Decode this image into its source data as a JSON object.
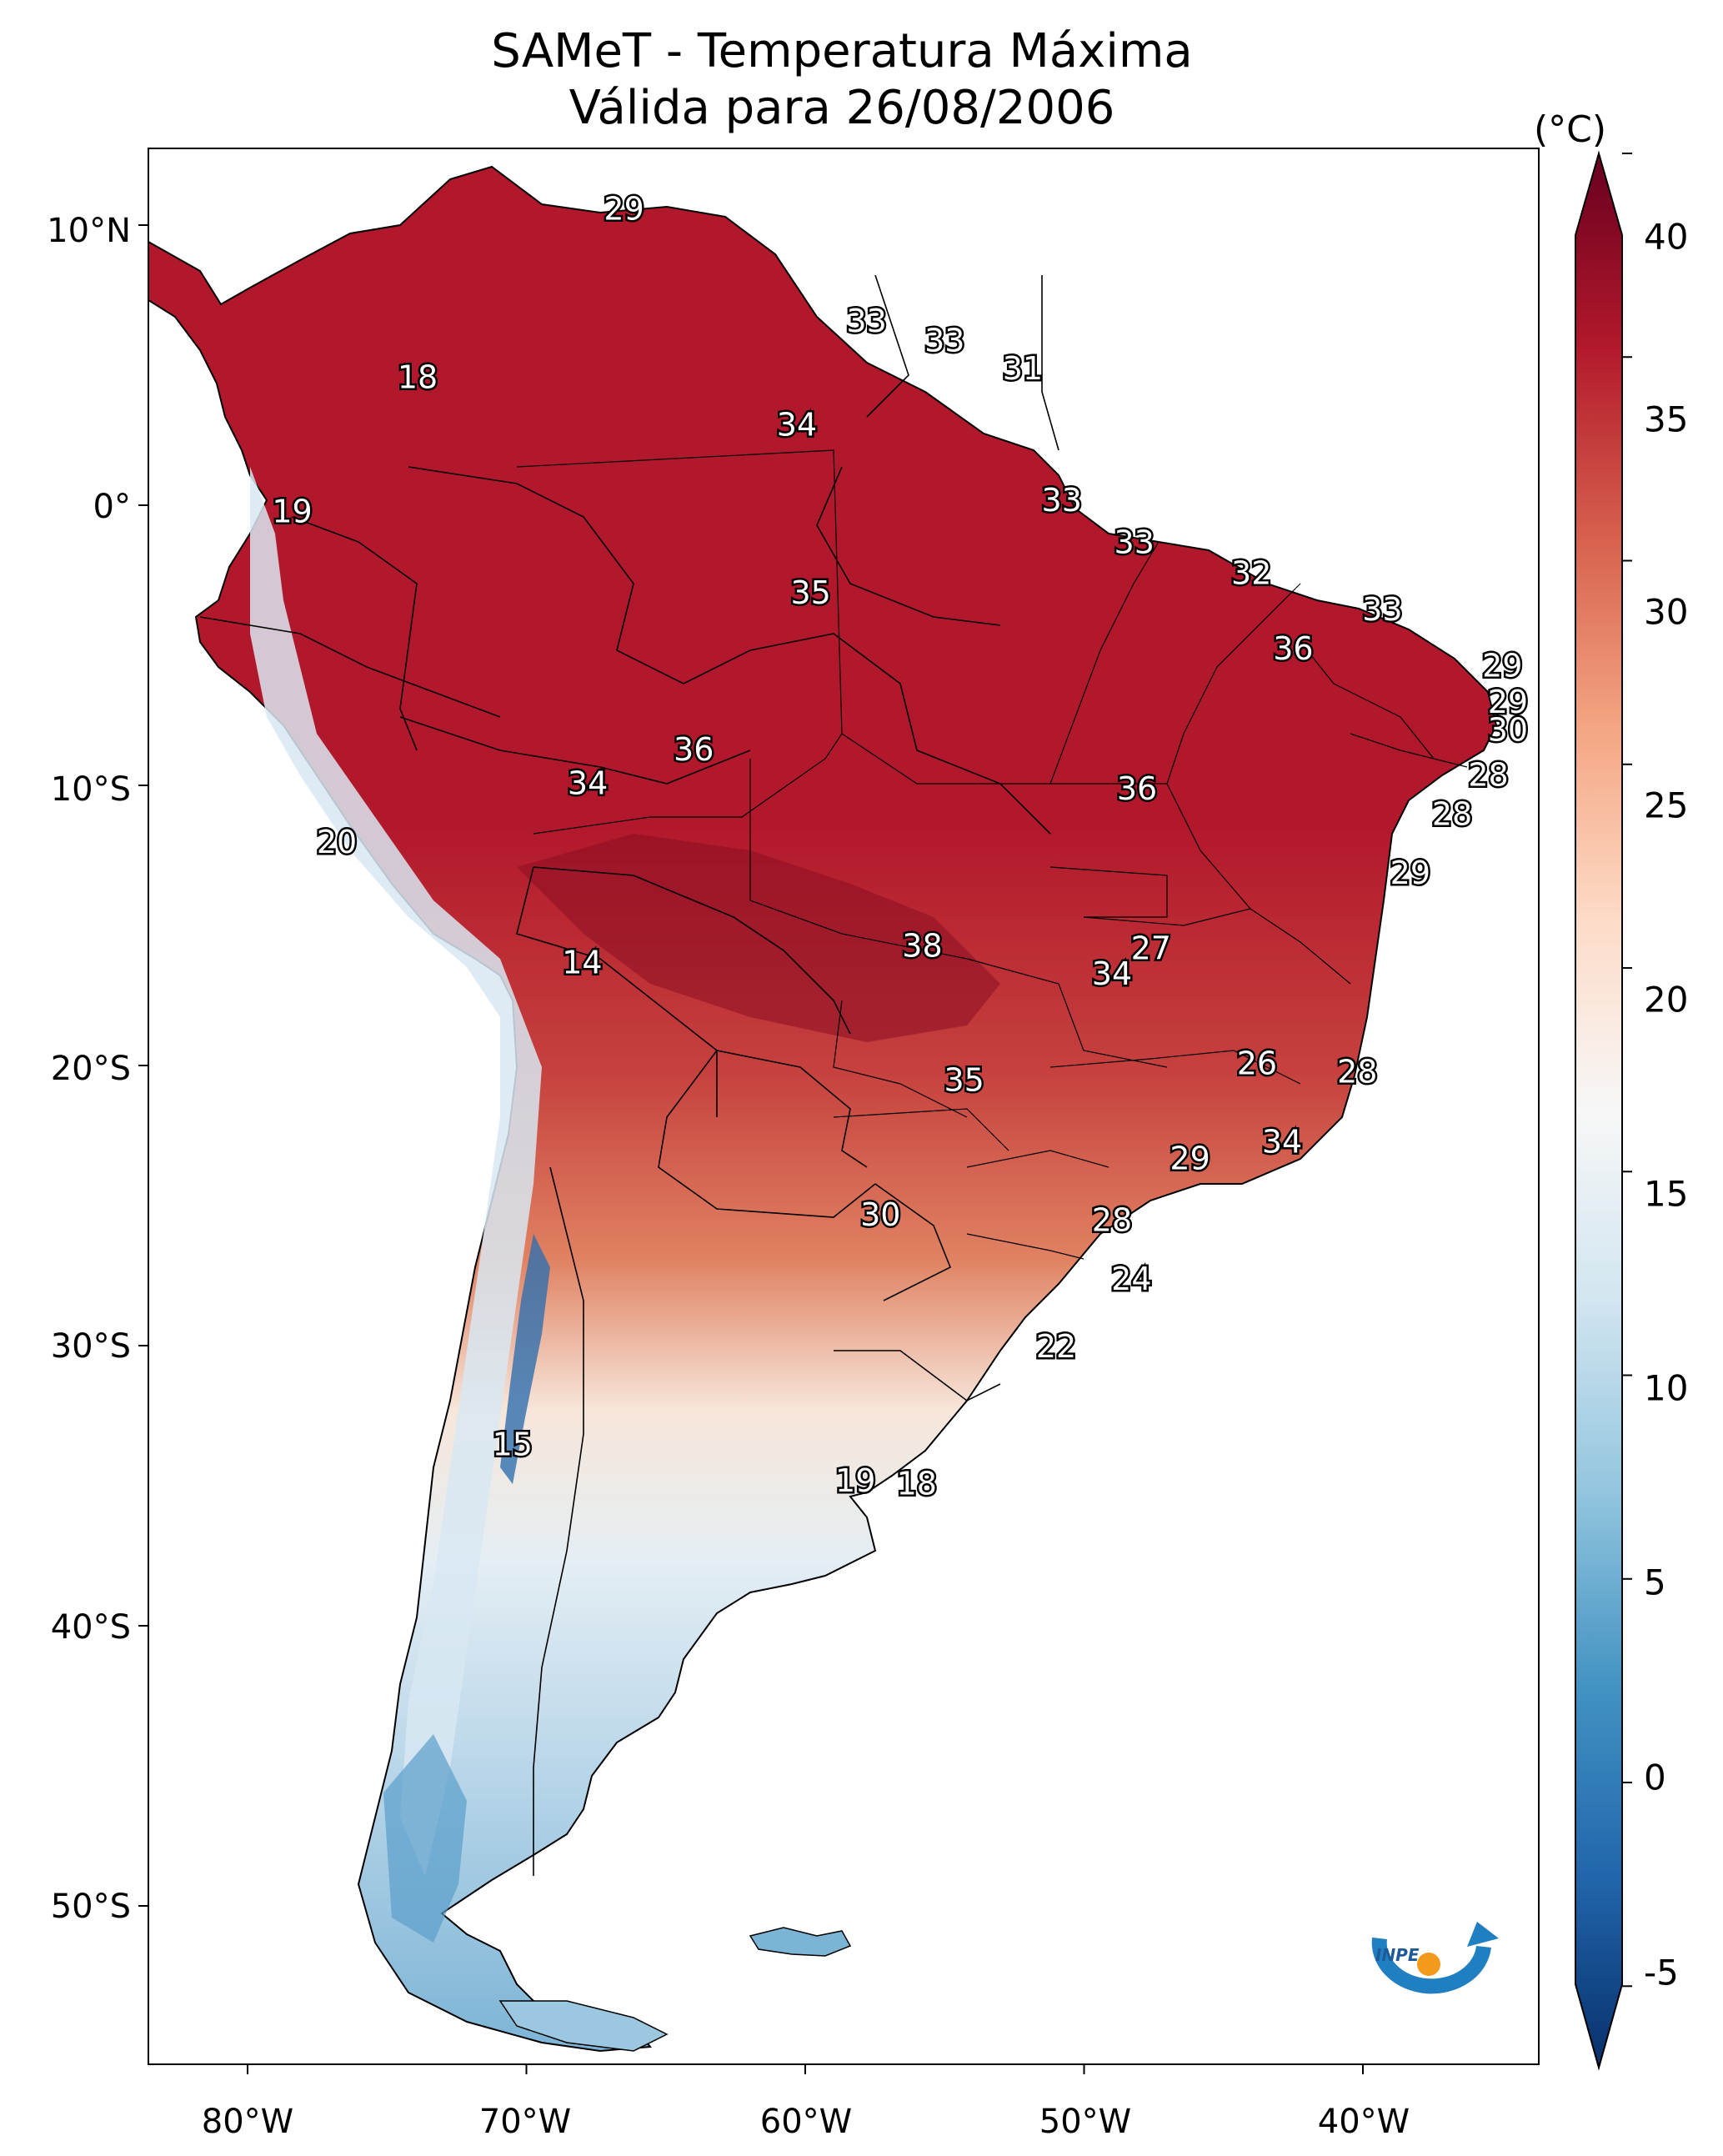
{
  "title": {
    "line1": "SAMeT - Temperatura Máxima",
    "line2": "Válida para 26/08/2006"
  },
  "axes": {
    "lat_labels": [
      "10°N",
      "0°",
      "10°S",
      "20°S",
      "30°S",
      "40°S",
      "50°S"
    ],
    "lon_labels": [
      "80°W",
      "70°W",
      "60°W",
      "50°W",
      "40°W"
    ]
  },
  "colorbar": {
    "unit": "(°C)",
    "ticks": [
      "40",
      "35",
      "30",
      "25",
      "20",
      "15",
      "10",
      "5",
      "0",
      "-5"
    ],
    "min": -7,
    "max": 40,
    "colors": [
      "#08306b",
      "#2166ac",
      "#4393c3",
      "#92c5de",
      "#d1e5f0",
      "#f7f7f7",
      "#fddbc7",
      "#f4a582",
      "#d6604d",
      "#b2182b",
      "#67001f"
    ]
  },
  "map_values": [
    {
      "label": "29",
      "lon": -66.5,
      "lat": 10.5
    },
    {
      "label": "33",
      "lon": -57.8,
      "lat": 6.5
    },
    {
      "label": "33",
      "lon": -55,
      "lat": 5.8
    },
    {
      "label": "31",
      "lon": -52.2,
      "lat": 4.8
    },
    {
      "label": "18",
      "lon": -73.9,
      "lat": 4.5
    },
    {
      "label": "34",
      "lon": -60.3,
      "lat": 2.8
    },
    {
      "label": "33",
      "lon": -50.8,
      "lat": 0.1
    },
    {
      "label": "19",
      "lon": -78.4,
      "lat": -0.3
    },
    {
      "label": "33",
      "lon": -48.2,
      "lat": -1.4
    },
    {
      "label": "32",
      "lon": -44,
      "lat": -2.5
    },
    {
      "label": "35",
      "lon": -59.8,
      "lat": -3.2
    },
    {
      "label": "33",
      "lon": -39.3,
      "lat": -3.8
    },
    {
      "label": "36",
      "lon": -42.5,
      "lat": -5.2
    },
    {
      "label": "29",
      "lon": -35,
      "lat": -5.8
    },
    {
      "label": "29",
      "lon": -34.8,
      "lat": -7.1
    },
    {
      "label": "30",
      "lon": -34.8,
      "lat": -8.1
    },
    {
      "label": "36",
      "lon": -64,
      "lat": -8.8
    },
    {
      "label": "28",
      "lon": -35.5,
      "lat": -9.7
    },
    {
      "label": "34",
      "lon": -67.8,
      "lat": -10
    },
    {
      "label": "36",
      "lon": -48.1,
      "lat": -10.2
    },
    {
      "label": "28",
      "lon": -36.8,
      "lat": -11.1
    },
    {
      "label": "20",
      "lon": -76.8,
      "lat": -12.1
    },
    {
      "label": "29",
      "lon": -38.3,
      "lat": -13.2
    },
    {
      "label": "38",
      "lon": -55.8,
      "lat": -15.8
    },
    {
      "label": "27",
      "lon": -47.6,
      "lat": -15.9
    },
    {
      "label": "14",
      "lon": -68,
      "lat": -16.4
    },
    {
      "label": "34",
      "lon": -49,
      "lat": -16.8
    },
    {
      "label": "26",
      "lon": -43.8,
      "lat": -20
    },
    {
      "label": "28",
      "lon": -40.2,
      "lat": -20.3
    },
    {
      "label": "35",
      "lon": -54.3,
      "lat": -20.6
    },
    {
      "label": "34",
      "lon": -42.9,
      "lat": -22.8
    },
    {
      "label": "29",
      "lon": -46.2,
      "lat": -23.4
    },
    {
      "label": "30",
      "lon": -57.3,
      "lat": -25.4
    },
    {
      "label": "28",
      "lon": -49,
      "lat": -25.6
    },
    {
      "label": "24",
      "lon": -48.3,
      "lat": -27.7
    },
    {
      "label": "22",
      "lon": -51,
      "lat": -30.1
    },
    {
      "label": "15",
      "lon": -70.5,
      "lat": -33.6
    },
    {
      "label": "19",
      "lon": -58.2,
      "lat": -34.9
    },
    {
      "label": "18",
      "lon": -56,
      "lat": -35
    }
  ],
  "logo": {
    "text": "INPE"
  }
}
